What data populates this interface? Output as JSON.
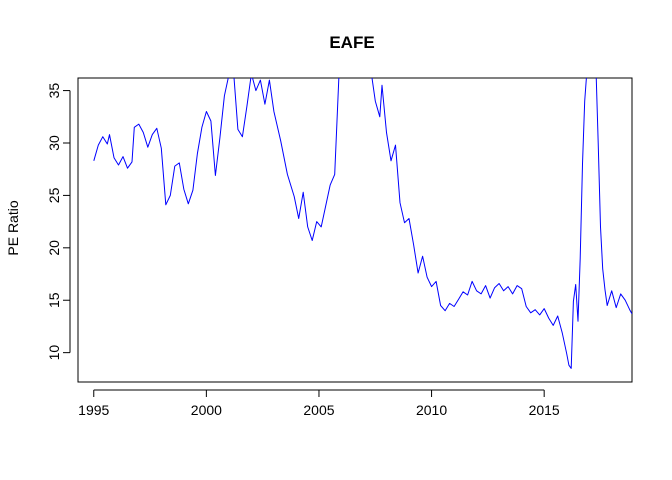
{
  "chart_data": {
    "type": "line",
    "title": "EAFE",
    "xlabel": "",
    "ylabel": "PE Ratio",
    "xlim": [
      1994.3,
      2018.9
    ],
    "ylim": [
      7.2,
      36.2
    ],
    "x_ticks": [
      1995,
      2000,
      2005,
      2010,
      2015
    ],
    "y_ticks": [
      10,
      15,
      20,
      25,
      30,
      35
    ],
    "grid": false,
    "legend": "none",
    "series": [
      {
        "color": "#0000ff",
        "points": [
          [
            1995.0,
            28.3
          ],
          [
            1995.2,
            29.8
          ],
          [
            1995.4,
            30.6
          ],
          [
            1995.6,
            29.9
          ],
          [
            1995.7,
            30.8
          ],
          [
            1995.9,
            28.6
          ],
          [
            1996.1,
            27.9
          ],
          [
            1996.3,
            28.7
          ],
          [
            1996.5,
            27.6
          ],
          [
            1996.7,
            28.2
          ],
          [
            1996.8,
            31.5
          ],
          [
            1997.0,
            31.8
          ],
          [
            1997.2,
            31.0
          ],
          [
            1997.4,
            29.6
          ],
          [
            1997.6,
            30.8
          ],
          [
            1997.8,
            31.4
          ],
          [
            1998.0,
            29.5
          ],
          [
            1998.2,
            24.1
          ],
          [
            1998.4,
            25.0
          ],
          [
            1998.6,
            27.8
          ],
          [
            1998.8,
            28.1
          ],
          [
            1999.0,
            25.6
          ],
          [
            1999.2,
            24.2
          ],
          [
            1999.4,
            25.5
          ],
          [
            1999.6,
            29.0
          ],
          [
            1999.8,
            31.5
          ],
          [
            2000.0,
            33.0
          ],
          [
            2000.2,
            32.1
          ],
          [
            2000.4,
            26.9
          ],
          [
            2000.6,
            30.5
          ],
          [
            2000.8,
            34.5
          ],
          [
            2001.0,
            36.5
          ],
          [
            2001.2,
            37.0
          ],
          [
            2001.4,
            31.3
          ],
          [
            2001.6,
            30.6
          ],
          [
            2001.8,
            33.5
          ],
          [
            2002.0,
            36.6
          ],
          [
            2002.2,
            35.0
          ],
          [
            2002.4,
            36.0
          ],
          [
            2002.6,
            33.7
          ],
          [
            2002.8,
            36.0
          ],
          [
            2003.0,
            33.0
          ],
          [
            2003.3,
            30.2
          ],
          [
            2003.6,
            27.0
          ],
          [
            2003.9,
            24.9
          ],
          [
            2004.1,
            22.8
          ],
          [
            2004.3,
            25.3
          ],
          [
            2004.5,
            22.0
          ],
          [
            2004.7,
            20.7
          ],
          [
            2004.9,
            22.5
          ],
          [
            2005.1,
            22.0
          ],
          [
            2005.3,
            24.0
          ],
          [
            2005.5,
            26.0
          ],
          [
            2005.7,
            27.0
          ],
          [
            2005.9,
            37.0
          ],
          [
            2007.3,
            37.0
          ],
          [
            2007.5,
            34.0
          ],
          [
            2007.7,
            32.5
          ],
          [
            2007.8,
            35.5
          ],
          [
            2008.0,
            31.0
          ],
          [
            2008.2,
            28.3
          ],
          [
            2008.4,
            29.8
          ],
          [
            2008.6,
            24.3
          ],
          [
            2008.8,
            22.4
          ],
          [
            2009.0,
            22.8
          ],
          [
            2009.2,
            20.3
          ],
          [
            2009.4,
            17.6
          ],
          [
            2009.6,
            19.2
          ],
          [
            2009.8,
            17.2
          ],
          [
            2010.0,
            16.3
          ],
          [
            2010.2,
            16.8
          ],
          [
            2010.4,
            14.5
          ],
          [
            2010.6,
            14.0
          ],
          [
            2010.8,
            14.7
          ],
          [
            2011.0,
            14.4
          ],
          [
            2011.2,
            15.1
          ],
          [
            2011.4,
            15.8
          ],
          [
            2011.6,
            15.5
          ],
          [
            2011.8,
            16.8
          ],
          [
            2012.0,
            15.9
          ],
          [
            2012.2,
            15.6
          ],
          [
            2012.4,
            16.4
          ],
          [
            2012.6,
            15.2
          ],
          [
            2012.8,
            16.2
          ],
          [
            2013.0,
            16.6
          ],
          [
            2013.2,
            15.9
          ],
          [
            2013.4,
            16.3
          ],
          [
            2013.6,
            15.6
          ],
          [
            2013.8,
            16.4
          ],
          [
            2014.0,
            16.1
          ],
          [
            2014.2,
            14.4
          ],
          [
            2014.4,
            13.8
          ],
          [
            2014.6,
            14.1
          ],
          [
            2014.8,
            13.6
          ],
          [
            2015.0,
            14.2
          ],
          [
            2015.2,
            13.3
          ],
          [
            2015.4,
            12.6
          ],
          [
            2015.6,
            13.5
          ],
          [
            2015.8,
            11.9
          ],
          [
            2016.0,
            9.9
          ],
          [
            2016.1,
            8.8
          ],
          [
            2016.2,
            8.5
          ],
          [
            2016.3,
            14.9
          ],
          [
            2016.4,
            16.5
          ],
          [
            2016.5,
            13.0
          ],
          [
            2016.6,
            19.0
          ],
          [
            2016.7,
            28.0
          ],
          [
            2016.8,
            34.0
          ],
          [
            2016.9,
            37.0
          ],
          [
            2017.3,
            37.0
          ],
          [
            2017.4,
            30.0
          ],
          [
            2017.5,
            22.0
          ],
          [
            2017.6,
            18.0
          ],
          [
            2017.7,
            16.0
          ],
          [
            2017.8,
            14.5
          ],
          [
            2018.0,
            15.9
          ],
          [
            2018.2,
            14.3
          ],
          [
            2018.4,
            15.6
          ],
          [
            2018.6,
            15.0
          ],
          [
            2018.8,
            14.1
          ],
          [
            2018.9,
            13.7
          ]
        ]
      }
    ]
  }
}
